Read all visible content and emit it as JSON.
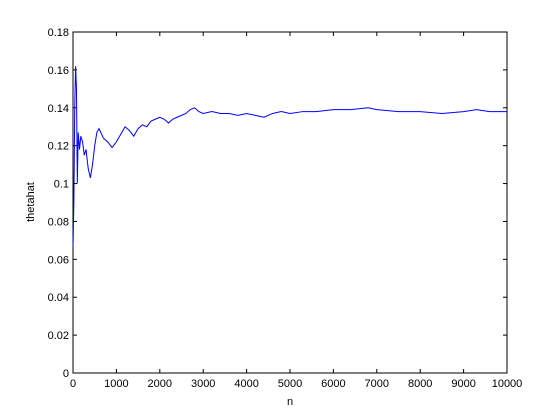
{
  "chart_data": {
    "type": "line",
    "xlabel": "n",
    "ylabel": "thetahat",
    "x": [
      1,
      20,
      40,
      60,
      80,
      100,
      120,
      150,
      180,
      220,
      260,
      300,
      350,
      400,
      450,
      500,
      550,
      600,
      700,
      800,
      900,
      1000,
      1100,
      1200,
      1300,
      1400,
      1500,
      1600,
      1700,
      1800,
      1900,
      2000,
      2100,
      2200,
      2300,
      2400,
      2500,
      2600,
      2700,
      2800,
      2900,
      3000,
      3200,
      3400,
      3600,
      3800,
      4000,
      4200,
      4400,
      4600,
      4800,
      5000,
      5300,
      5600,
      6000,
      6400,
      6800,
      7000,
      7500,
      8000,
      8500,
      9000,
      9300,
      9600,
      10000
    ],
    "series": [
      {
        "color": "#0000ff",
        "values": [
          0.067,
          0.09,
          0.14,
          0.162,
          0.15,
          0.1,
          0.127,
          0.118,
          0.125,
          0.122,
          0.115,
          0.118,
          0.108,
          0.103,
          0.11,
          0.12,
          0.127,
          0.129,
          0.124,
          0.122,
          0.119,
          0.122,
          0.126,
          0.13,
          0.128,
          0.125,
          0.129,
          0.131,
          0.13,
          0.133,
          0.134,
          0.135,
          0.134,
          0.132,
          0.134,
          0.135,
          0.136,
          0.137,
          0.139,
          0.14,
          0.138,
          0.137,
          0.138,
          0.137,
          0.137,
          0.136,
          0.137,
          0.136,
          0.135,
          0.137,
          0.138,
          0.137,
          0.138,
          0.138,
          0.139,
          0.139,
          0.14,
          0.139,
          0.138,
          0.138,
          0.137,
          0.138,
          0.139,
          0.138,
          0.138
        ]
      }
    ],
    "xlim": [
      0,
      10000
    ],
    "xticks": [
      0,
      1000,
      2000,
      3000,
      4000,
      5000,
      6000,
      7000,
      8000,
      9000,
      10000
    ],
    "ylim": [
      0,
      0.18
    ],
    "yticks": [
      0,
      0.02,
      0.04,
      0.06,
      0.08,
      0.1,
      0.12,
      0.14,
      0.16,
      0.18
    ],
    "grid": false
  }
}
